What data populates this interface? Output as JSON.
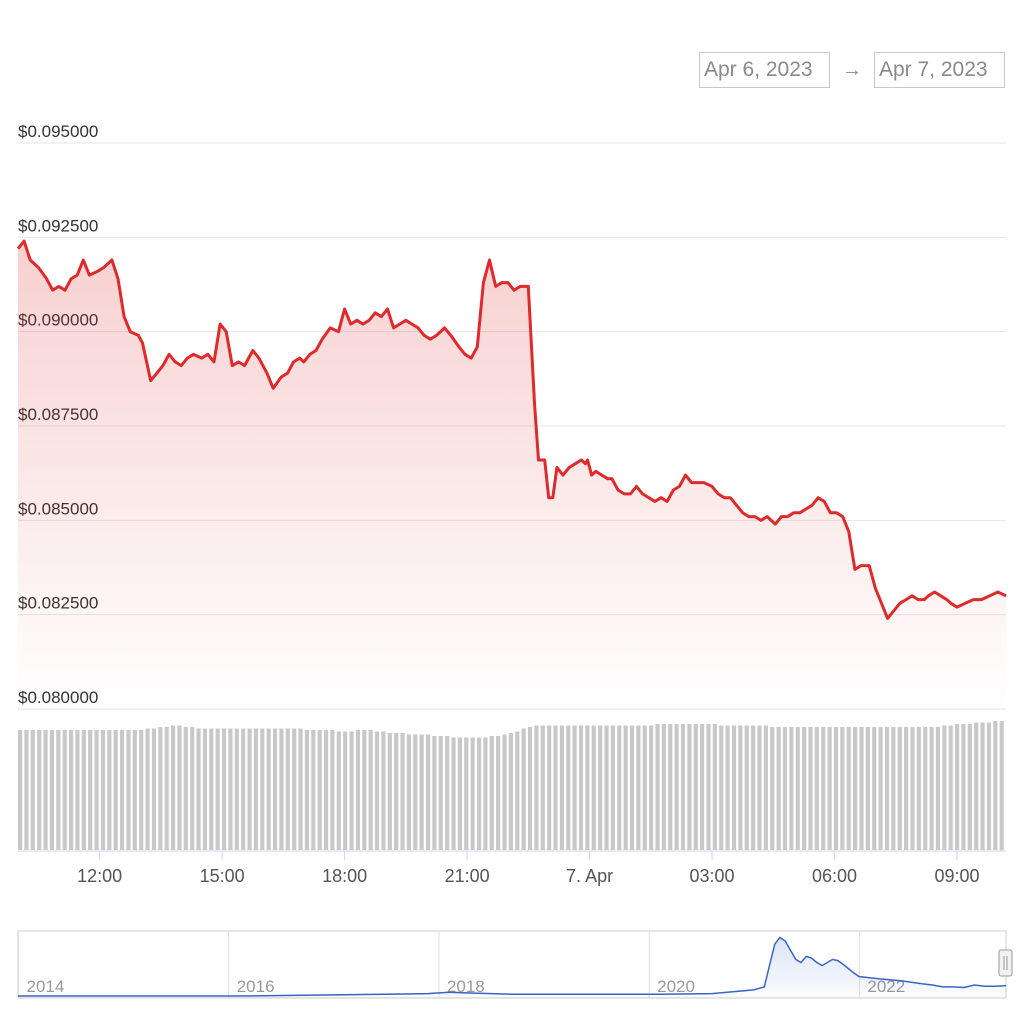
{
  "range": {
    "from": "Apr 6, 2023",
    "arrow": "→",
    "to": "Apr 7, 2023"
  },
  "colors": {
    "price_line": "#dd2a2a",
    "volume_bar": "#c8c8c8",
    "navigator_line": "#3a64c4"
  },
  "chart_data": {
    "type": "line",
    "y_ticks": [
      "$0.095000",
      "$0.092500",
      "$0.090000",
      "$0.087500",
      "$0.085000",
      "$0.082500",
      "$0.080000"
    ],
    "y_tick_values": [
      0.095,
      0.0925,
      0.09,
      0.0875,
      0.085,
      0.0825,
      0.08
    ],
    "ylim": [
      0.08,
      0.095
    ],
    "x_ticks": [
      "12:00",
      "15:00",
      "18:00",
      "21:00",
      "7. Apr",
      "03:00",
      "06:00",
      "09:00"
    ],
    "x_tick_hours": [
      12,
      15,
      18,
      21,
      24,
      27,
      30,
      33
    ],
    "xlim_hours": [
      10.0,
      34.2
    ],
    "series": [
      {
        "x_hours": [
          10.0,
          10.15,
          10.3,
          10.5,
          10.7,
          10.85,
          11.0,
          11.15,
          11.3,
          11.45,
          11.6,
          11.75,
          11.95,
          12.1,
          12.3,
          12.45,
          12.6,
          12.75,
          12.95,
          13.05,
          13.25,
          13.4,
          13.55,
          13.7,
          13.85,
          14.0,
          14.15,
          14.3,
          14.5,
          14.65,
          14.8,
          14.95,
          15.1,
          15.25,
          15.4,
          15.55,
          15.75,
          15.9,
          16.1,
          16.25,
          16.45,
          16.6,
          16.75,
          16.9,
          17.0,
          17.15,
          17.3,
          17.45,
          17.65,
          17.85,
          18.0,
          18.15,
          18.3,
          18.45,
          18.6,
          18.75,
          18.9,
          19.05,
          19.2,
          19.35,
          19.5,
          19.65,
          19.8,
          19.95,
          20.1,
          20.25,
          20.45,
          20.6,
          20.8,
          20.95,
          21.1,
          21.25,
          21.4,
          21.55,
          21.7,
          21.85,
          22.0,
          22.15,
          22.3,
          22.5,
          22.65,
          22.75,
          22.9,
          23.0,
          23.1,
          23.2,
          23.35,
          23.5,
          23.65,
          23.8,
          23.9,
          23.95,
          24.0,
          24.05,
          24.15,
          24.3,
          24.45,
          24.55,
          24.7,
          24.85,
          25.0,
          25.15,
          25.3,
          25.45,
          25.6,
          25.75,
          25.9,
          26.05,
          26.2,
          26.35,
          26.5,
          26.65,
          26.8,
          27.0,
          27.15,
          27.3,
          27.45,
          27.6,
          27.75,
          27.9,
          28.05,
          28.2,
          28.35,
          28.55,
          28.7,
          28.85,
          29.0,
          29.15,
          29.3,
          29.45,
          29.6,
          29.75,
          29.9,
          30.05,
          30.2,
          30.35,
          30.5,
          30.65,
          30.85,
          31.0,
          31.15,
          31.3,
          31.45,
          31.6,
          31.75,
          31.9,
          32.05,
          32.2,
          32.3,
          32.45,
          32.6,
          32.75,
          32.85,
          33.0,
          33.2,
          33.4,
          33.6,
          33.8,
          34.0,
          34.2
        ],
        "values": [
          0.0922,
          0.0924,
          0.0919,
          0.0917,
          0.0914,
          0.0911,
          0.0912,
          0.0911,
          0.0914,
          0.0915,
          0.0919,
          0.0915,
          0.0916,
          0.0917,
          0.0919,
          0.0914,
          0.0904,
          0.09,
          0.0899,
          0.0897,
          0.0887,
          0.0889,
          0.0891,
          0.0894,
          0.0892,
          0.0891,
          0.0893,
          0.0894,
          0.0893,
          0.0894,
          0.0892,
          0.0902,
          0.09,
          0.0891,
          0.0892,
          0.0891,
          0.0895,
          0.0893,
          0.0889,
          0.0885,
          0.0888,
          0.0889,
          0.0892,
          0.0893,
          0.0892,
          0.0894,
          0.0895,
          0.0898,
          0.0901,
          0.09,
          0.0906,
          0.0902,
          0.0903,
          0.0902,
          0.0903,
          0.0905,
          0.0904,
          0.0906,
          0.0901,
          0.0902,
          0.0903,
          0.0902,
          0.0901,
          0.0899,
          0.0898,
          0.0899,
          0.0901,
          0.0899,
          0.0896,
          0.0894,
          0.0893,
          0.0896,
          0.0913,
          0.0919,
          0.0912,
          0.0913,
          0.0913,
          0.0911,
          0.0912,
          0.0912,
          0.0881,
          0.0866,
          0.0866,
          0.0856,
          0.0856,
          0.0864,
          0.0862,
          0.0864,
          0.0865,
          0.0866,
          0.0865,
          0.0866,
          0.0864,
          0.0862,
          0.0863,
          0.0862,
          0.0861,
          0.0861,
          0.0858,
          0.0857,
          0.0857,
          0.0859,
          0.0857,
          0.0856,
          0.0855,
          0.0856,
          0.0855,
          0.0858,
          0.0859,
          0.0862,
          0.086,
          0.086,
          0.086,
          0.0859,
          0.0857,
          0.0856,
          0.0856,
          0.0854,
          0.0852,
          0.0851,
          0.0851,
          0.085,
          0.0851,
          0.0849,
          0.0851,
          0.0851,
          0.0852,
          0.0852,
          0.0853,
          0.0854,
          0.0856,
          0.0855,
          0.0852,
          0.0852,
          0.0851,
          0.0847,
          0.0837,
          0.0838,
          0.0838,
          0.0832,
          0.0828,
          0.0824,
          0.0826,
          0.0828,
          0.0829,
          0.083,
          0.0829,
          0.0829,
          0.083,
          0.0831,
          0.083,
          0.0829,
          0.0828,
          0.0827,
          0.0828,
          0.0829,
          0.0829,
          0.083,
          0.0831,
          0.083
        ]
      }
    ],
    "volume": {
      "count": 155,
      "relative_heights": [
        0.8,
        0.8,
        0.8,
        0.8,
        0.8,
        0.8,
        0.8,
        0.8,
        0.8,
        0.8,
        0.8,
        0.8,
        0.8,
        0.8,
        0.8,
        0.8,
        0.8,
        0.8,
        0.8,
        0.8,
        0.81,
        0.81,
        0.82,
        0.82,
        0.83,
        0.83,
        0.82,
        0.82,
        0.81,
        0.81,
        0.81,
        0.81,
        0.81,
        0.81,
        0.81,
        0.81,
        0.81,
        0.81,
        0.81,
        0.81,
        0.81,
        0.81,
        0.81,
        0.81,
        0.81,
        0.8,
        0.8,
        0.8,
        0.8,
        0.8,
        0.79,
        0.79,
        0.79,
        0.8,
        0.8,
        0.8,
        0.79,
        0.79,
        0.78,
        0.78,
        0.78,
        0.77,
        0.77,
        0.77,
        0.77,
        0.76,
        0.76,
        0.76,
        0.75,
        0.75,
        0.75,
        0.75,
        0.75,
        0.75,
        0.76,
        0.76,
        0.77,
        0.78,
        0.79,
        0.81,
        0.82,
        0.83,
        0.83,
        0.83,
        0.83,
        0.83,
        0.83,
        0.83,
        0.83,
        0.83,
        0.83,
        0.83,
        0.83,
        0.83,
        0.83,
        0.83,
        0.83,
        0.83,
        0.83,
        0.83,
        0.84,
        0.84,
        0.84,
        0.84,
        0.84,
        0.84,
        0.84,
        0.84,
        0.84,
        0.84,
        0.83,
        0.83,
        0.83,
        0.83,
        0.83,
        0.83,
        0.83,
        0.83,
        0.82,
        0.82,
        0.82,
        0.82,
        0.82,
        0.82,
        0.82,
        0.82,
        0.82,
        0.82,
        0.82,
        0.82,
        0.82,
        0.82,
        0.82,
        0.82,
        0.82,
        0.82,
        0.82,
        0.82,
        0.82,
        0.82,
        0.82,
        0.82,
        0.82,
        0.82,
        0.82,
        0.83,
        0.83,
        0.84,
        0.84,
        0.84,
        0.85,
        0.85,
        0.85,
        0.86,
        0.86
      ]
    },
    "navigator": {
      "labels": [
        "2014",
        "2016",
        "2018",
        "2020",
        "2022"
      ],
      "label_years": [
        2014,
        2016,
        2018,
        2020,
        2022
      ],
      "xlim_years": [
        2013.9,
        2023.3
      ],
      "years": [
        2013.9,
        2014.5,
        2015.0,
        2015.5,
        2016.0,
        2016.5,
        2017.0,
        2017.4,
        2017.8,
        2018.0,
        2018.2,
        2018.6,
        2019.0,
        2019.5,
        2020.0,
        2020.5,
        2020.9,
        2021.0,
        2021.05,
        2021.1,
        2021.15,
        2021.2,
        2021.25,
        2021.3,
        2021.35,
        2021.4,
        2021.45,
        2021.5,
        2021.55,
        2021.6,
        2021.65,
        2021.7,
        2021.75,
        2021.8,
        2021.85,
        2021.9,
        2022.0,
        2022.1,
        2022.3,
        2022.5,
        2022.6,
        2022.7,
        2022.8,
        2022.9,
        2023.0,
        2023.1,
        2023.2,
        2023.3
      ],
      "relative_values": [
        0.0,
        0.0,
        0.0,
        0.0,
        0.0,
        0.01,
        0.02,
        0.03,
        0.04,
        0.06,
        0.05,
        0.03,
        0.03,
        0.03,
        0.03,
        0.04,
        0.1,
        0.15,
        0.5,
        0.85,
        0.96,
        0.9,
        0.75,
        0.6,
        0.55,
        0.65,
        0.62,
        0.55,
        0.5,
        0.55,
        0.6,
        0.58,
        0.52,
        0.45,
        0.38,
        0.32,
        0.3,
        0.28,
        0.25,
        0.2,
        0.18,
        0.15,
        0.15,
        0.14,
        0.18,
        0.16,
        0.16,
        0.17
      ]
    }
  }
}
